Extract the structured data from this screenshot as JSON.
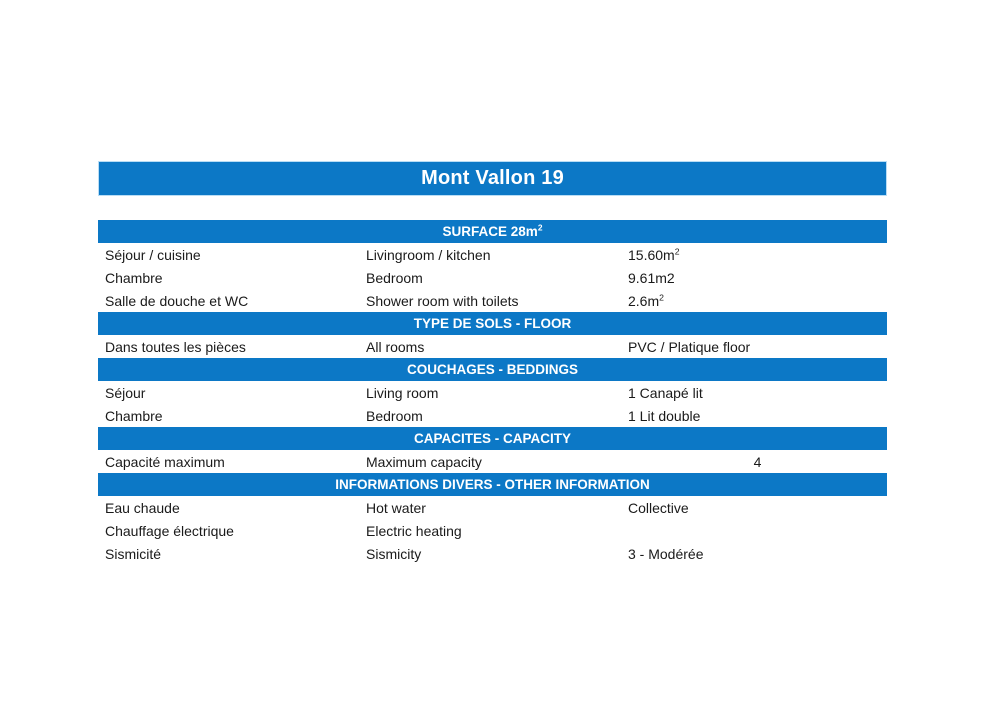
{
  "page": {
    "background": "#ffffff",
    "accent": "#0c78c6",
    "accent_edge": "#b9ddf5",
    "header_text_color": "#ffffff",
    "body_text_color": "#1a1a1a"
  },
  "title": "Mont Vallon 19",
  "sections": [
    {
      "header": "SURFACE 28m²",
      "rows": [
        {
          "fr": "Séjour / cuisine",
          "en": "Livingroom / kitchen",
          "value": "15.60m²"
        },
        {
          "fr": "Chambre",
          "en": "Bedroom",
          "value": "9.61m2"
        },
        {
          "fr": "Salle de douche et WC",
          "en": "Shower room with toilets",
          "value": "2.6m²"
        }
      ]
    },
    {
      "header": "TYPE DE SOLS - FLOOR",
      "rows": [
        {
          "fr": "Dans toutes les pièces",
          "en": "All rooms",
          "value": "PVC / Platique floor"
        }
      ]
    },
    {
      "header": "COUCHAGES - BEDDINGS",
      "rows": [
        {
          "fr": "Séjour",
          "en": "Living room",
          "value": "1 Canapé lit"
        },
        {
          "fr": "Chambre",
          "en": "Bedroom",
          "value": "1 Lit double"
        }
      ]
    },
    {
      "header": "CAPACITES - CAPACITY",
      "rows": [
        {
          "fr": "Capacité maximum",
          "en": "Maximum capacity",
          "value": "4",
          "value_align": "center"
        }
      ]
    },
    {
      "header": "INFORMATIONS DIVERS - OTHER INFORMATION",
      "rows": [
        {
          "fr": "Eau chaude",
          "en": "Hot water",
          "value": "Collective"
        },
        {
          "fr": "Chauffage électrique",
          "en": "Electric heating",
          "value": ""
        },
        {
          "fr": "Sismicité",
          "en": "Sismicity",
          "value": "3 - Modérée"
        }
      ]
    }
  ]
}
